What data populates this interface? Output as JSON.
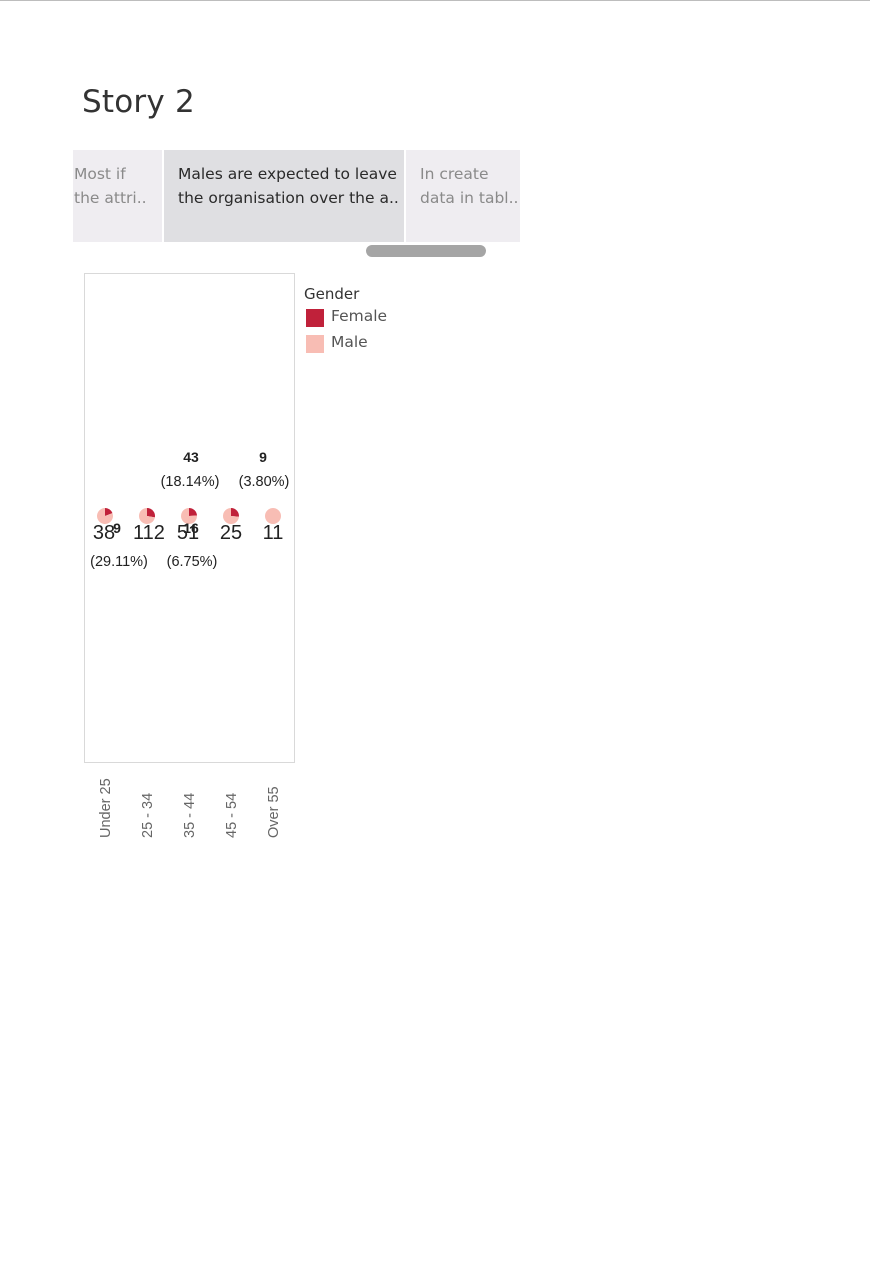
{
  "story": {
    "title": "Story 2",
    "tabs": [
      {
        "label": "Most if\nthe attri.."
      },
      {
        "label": "Males are expected to leave\nthe organisation over the a.."
      },
      {
        "label": "In create\ndata in tabl.."
      }
    ]
  },
  "colors": {
    "female": "#c0213a",
    "male": "#f8bdb4",
    "box_border": "#d9d9d9"
  },
  "chart_data": {
    "type": "pie",
    "subtype": "pie-per-category",
    "categories": [
      "Under 25",
      "25 - 34",
      "35 - 44",
      "45 - 54",
      "Over 55"
    ],
    "series": [
      {
        "name": "Female",
        "values": [
          9,
          43,
          16,
          9,
          0
        ]
      },
      {
        "name": "Male",
        "values": [
          38,
          112,
          51,
          25,
          11
        ]
      }
    ],
    "annotations": [
      {
        "category": "Under 25",
        "value_label": "38",
        "percent_label": "(29.11%)"
      },
      {
        "category": "Under 25",
        "value_label": "9",
        "percent_label": ""
      },
      {
        "category": "25 - 34",
        "value_label": "112",
        "percent_label": "(6.75%)"
      },
      {
        "category": "35 - 44",
        "value_label": "51",
        "percent_label": ""
      },
      {
        "category": "35 - 44",
        "value_label": "16",
        "percent_label": ""
      },
      {
        "category": "35 - 44",
        "value_label": "43",
        "percent_label": "(18.14%)"
      },
      {
        "category": "45 - 54",
        "value_label": "25",
        "percent_label": ""
      },
      {
        "category": "Over 55",
        "value_label": "11",
        "percent_label": ""
      },
      {
        "category": "Over 55",
        "value_label": "9",
        "percent_label": "(3.80%)"
      }
    ],
    "legend": {
      "title": "Gender",
      "entries": [
        "Female",
        "Male"
      ],
      "position": "right"
    },
    "xlabel": "",
    "ylabel": ""
  }
}
